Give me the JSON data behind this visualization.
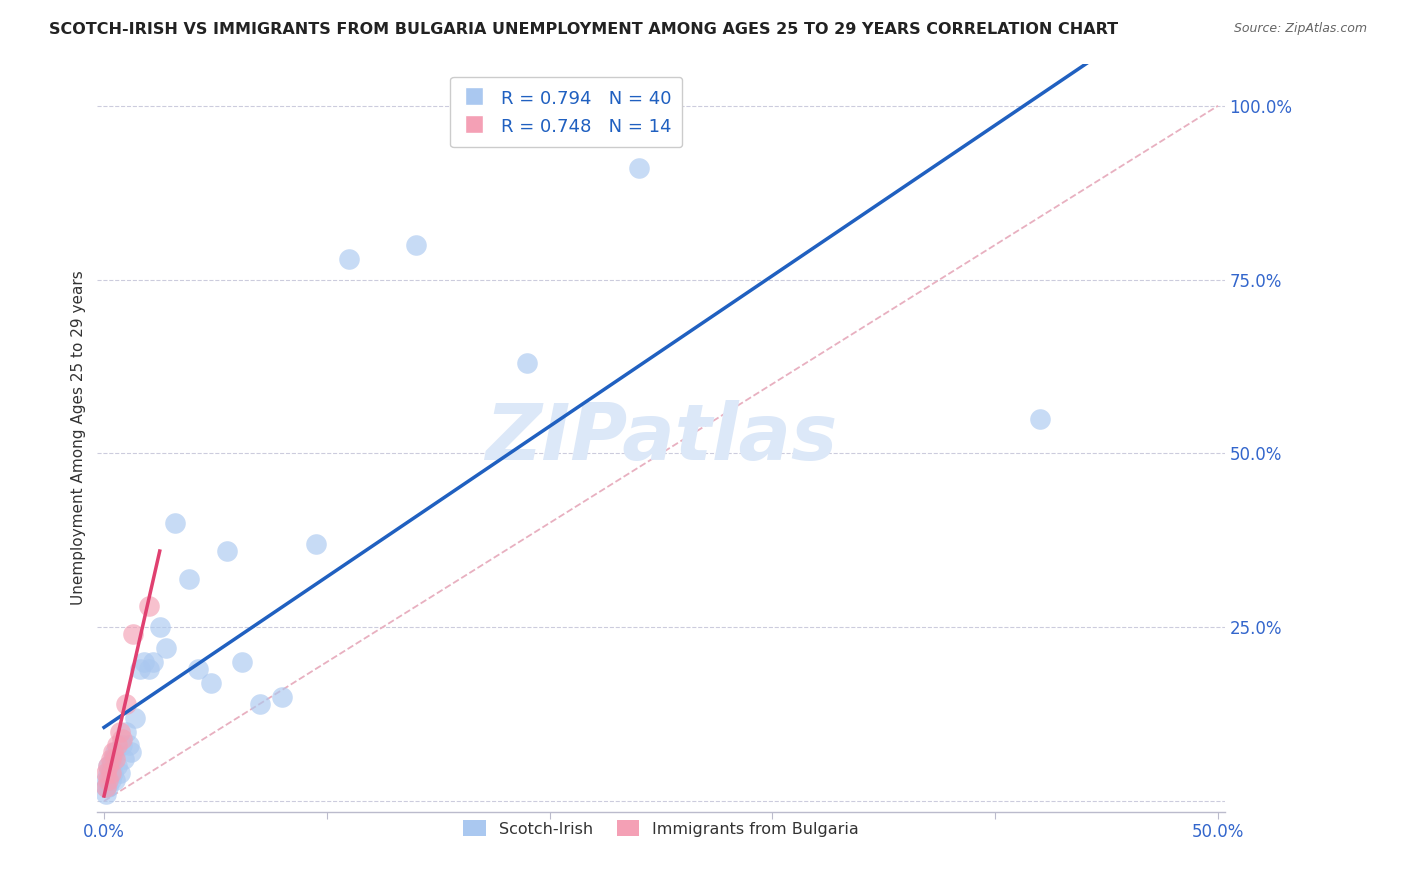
{
  "title": "SCOTCH-IRISH VS IMMIGRANTS FROM BULGARIA UNEMPLOYMENT AMONG AGES 25 TO 29 YEARS CORRELATION CHART",
  "source": "Source: ZipAtlas.com",
  "ylabel": "Unemployment Among Ages 25 to 29 years",
  "xlim": [
    -0.003,
    0.503
  ],
  "ylim": [
    -0.015,
    1.06
  ],
  "xticks": [
    0.0,
    0.1,
    0.2,
    0.3,
    0.4,
    0.5
  ],
  "xtick_labels": [
    "0.0%",
    "",
    "",
    "",
    "",
    "50.0%"
  ],
  "yticks": [
    0.0,
    0.25,
    0.5,
    0.75,
    1.0
  ],
  "ytick_labels": [
    "",
    "25.0%",
    "50.0%",
    "75.0%",
    "100.0%"
  ],
  "blue_R": "0.794",
  "blue_N": "40",
  "pink_R": "0.748",
  "pink_N": "14",
  "scotch_color": "#aac8f0",
  "bulgaria_color": "#f4a0b5",
  "blue_line_color": "#2060c0",
  "pink_line_color": "#e04070",
  "diag_color": "#e8b0c0",
  "watermark_color": "#dce8f8",
  "legend_label_blue": "Scotch-Irish",
  "legend_label_pink": "Immigrants from Bulgaria",
  "si_x": [
    0.001,
    0.001,
    0.001,
    0.002,
    0.002,
    0.002,
    0.003,
    0.003,
    0.004,
    0.004,
    0.005,
    0.005,
    0.006,
    0.007,
    0.008,
    0.009,
    0.01,
    0.011,
    0.012,
    0.014,
    0.016,
    0.018,
    0.02,
    0.022,
    0.025,
    0.028,
    0.032,
    0.038,
    0.042,
    0.048,
    0.055,
    0.062,
    0.07,
    0.08,
    0.095,
    0.11,
    0.14,
    0.19,
    0.24,
    0.42
  ],
  "si_y": [
    0.01,
    0.02,
    0.03,
    0.02,
    0.04,
    0.05,
    0.03,
    0.05,
    0.04,
    0.06,
    0.03,
    0.07,
    0.05,
    0.04,
    0.08,
    0.06,
    0.1,
    0.08,
    0.07,
    0.12,
    0.19,
    0.2,
    0.19,
    0.2,
    0.25,
    0.22,
    0.4,
    0.32,
    0.19,
    0.17,
    0.36,
    0.2,
    0.14,
    0.15,
    0.37,
    0.78,
    0.8,
    0.63,
    0.91,
    0.55
  ],
  "bg_x": [
    0.001,
    0.001,
    0.002,
    0.002,
    0.003,
    0.003,
    0.004,
    0.005,
    0.006,
    0.007,
    0.008,
    0.01,
    0.013,
    0.02
  ],
  "bg_y": [
    0.02,
    0.04,
    0.03,
    0.05,
    0.04,
    0.06,
    0.07,
    0.06,
    0.08,
    0.1,
    0.09,
    0.14,
    0.24,
    0.28
  ]
}
